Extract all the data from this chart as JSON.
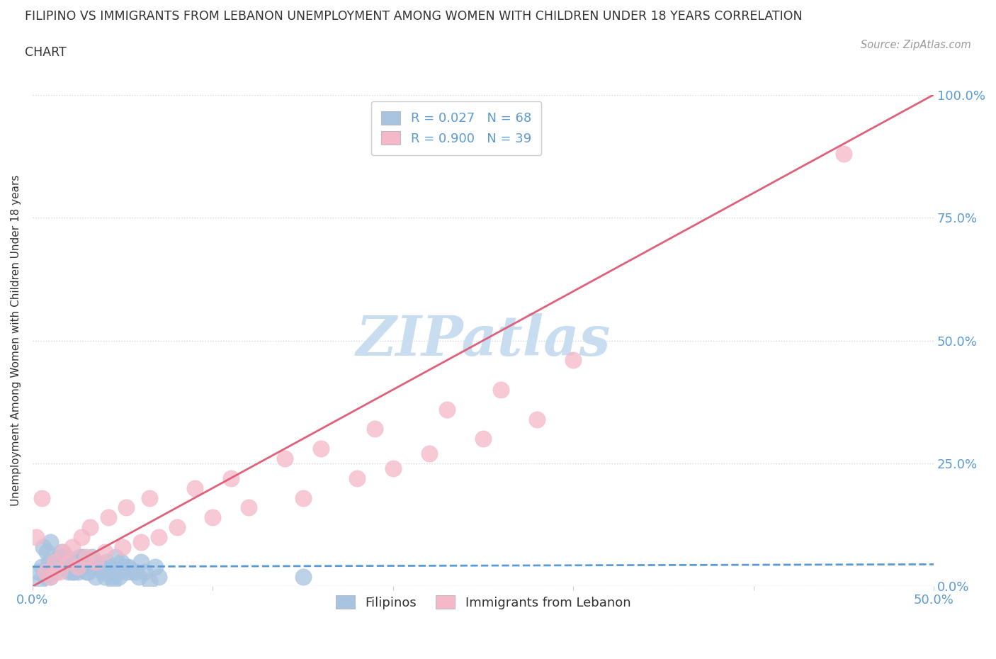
{
  "title_line1": "FILIPINO VS IMMIGRANTS FROM LEBANON UNEMPLOYMENT AMONG WOMEN WITH CHILDREN UNDER 18 YEARS CORRELATION",
  "title_line2": "CHART",
  "source": "Source: ZipAtlas.com",
  "ylabel": "Unemployment Among Women with Children Under 18 years",
  "xlim": [
    0,
    0.5
  ],
  "ylim": [
    0,
    1.0
  ],
  "xticks": [
    0.0,
    0.1,
    0.2,
    0.3,
    0.4,
    0.5
  ],
  "xticklabels": [
    "0.0%",
    "",
    "",
    "",
    "",
    "50.0%"
  ],
  "yticks": [
    0.0,
    0.25,
    0.5,
    0.75,
    1.0
  ],
  "yticklabels": [
    "0.0%",
    "25.0%",
    "50.0%",
    "75.0%",
    "100.0%"
  ],
  "filipino_R": 0.027,
  "filipino_N": 68,
  "lebanon_R": 0.9,
  "lebanon_N": 39,
  "filipino_color": "#a8c4e0",
  "lebanon_color": "#f4b8c8",
  "filipino_line_color": "#5b9bd5",
  "lebanon_line_color": "#e0607a",
  "axis_color": "#5b9bd5",
  "watermark_color": "#c8ddf0",
  "background_color": "#ffffff",
  "grid_color": "#d0d8e8",
  "legend_R_color": "#5b9bd5",
  "filipino_scatter_x": [
    0.01,
    0.02,
    0.03,
    0.04,
    0.005,
    0.015,
    0.025,
    0.035,
    0.045,
    0.008,
    0.012,
    0.018,
    0.022,
    0.028,
    0.032,
    0.038,
    0.042,
    0.048,
    0.052,
    0.06,
    0.006,
    0.01,
    0.014,
    0.016,
    0.02,
    0.024,
    0.026,
    0.03,
    0.034,
    0.036,
    0.04,
    0.044,
    0.046,
    0.05,
    0.055,
    0.07,
    0.065,
    0.009,
    0.011,
    0.013,
    0.017,
    0.019,
    0.021,
    0.023,
    0.027,
    0.029,
    0.031,
    0.033,
    0.037,
    0.039,
    0.041,
    0.043,
    0.047,
    0.049,
    0.053,
    0.057,
    0.059,
    0.062,
    0.068,
    0.15,
    0.004,
    0.007,
    0.003,
    0.016,
    0.022,
    0.019,
    0.035,
    0.052
  ],
  "filipino_scatter_y": [
    0.02,
    0.03,
    0.05,
    0.02,
    0.04,
    0.06,
    0.03,
    0.04,
    0.01,
    0.07,
    0.05,
    0.04,
    0.03,
    0.06,
    0.05,
    0.04,
    0.03,
    0.02,
    0.04,
    0.05,
    0.08,
    0.09,
    0.06,
    0.07,
    0.05,
    0.04,
    0.06,
    0.03,
    0.05,
    0.04,
    0.03,
    0.02,
    0.06,
    0.04,
    0.03,
    0.02,
    0.01,
    0.05,
    0.04,
    0.03,
    0.06,
    0.05,
    0.04,
    0.03,
    0.05,
    0.04,
    0.03,
    0.06,
    0.04,
    0.03,
    0.05,
    0.04,
    0.03,
    0.05,
    0.04,
    0.03,
    0.02,
    0.03,
    0.04,
    0.02,
    0.01,
    0.02,
    0.03,
    0.05,
    0.04,
    0.06,
    0.02,
    0.03
  ],
  "lebanon_scatter_x": [
    0.005,
    0.01,
    0.015,
    0.02,
    0.025,
    0.03,
    0.035,
    0.04,
    0.05,
    0.06,
    0.07,
    0.08,
    0.1,
    0.12,
    0.15,
    0.18,
    0.2,
    0.22,
    0.25,
    0.28,
    0.002,
    0.007,
    0.012,
    0.017,
    0.022,
    0.027,
    0.032,
    0.042,
    0.052,
    0.065,
    0.09,
    0.11,
    0.14,
    0.16,
    0.19,
    0.23,
    0.26,
    0.3,
    0.45
  ],
  "lebanon_scatter_y": [
    0.18,
    0.02,
    0.03,
    0.05,
    0.04,
    0.06,
    0.05,
    0.07,
    0.08,
    0.09,
    0.1,
    0.12,
    0.14,
    0.16,
    0.18,
    0.22,
    0.24,
    0.27,
    0.3,
    0.34,
    0.1,
    0.03,
    0.05,
    0.07,
    0.08,
    0.1,
    0.12,
    0.14,
    0.16,
    0.18,
    0.2,
    0.22,
    0.26,
    0.28,
    0.32,
    0.36,
    0.4,
    0.46,
    0.88
  ]
}
